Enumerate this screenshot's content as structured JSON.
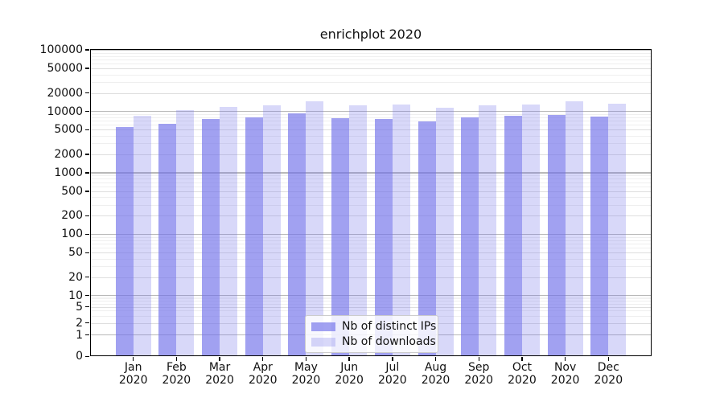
{
  "chart_data": {
    "type": "bar",
    "title": "enrichplot 2020",
    "categories": [
      "Jan",
      "Feb",
      "Mar",
      "Apr",
      "May",
      "Jun",
      "Jul",
      "Aug",
      "Sep",
      "Oct",
      "Nov",
      "Dec"
    ],
    "category_sub_label": "2020",
    "series": [
      {
        "name": "Nb of distinct IPs",
        "color": "#6e6ee9",
        "alpha": 0.65,
        "color_rendered": "#a1a1f1",
        "values": [
          5500,
          6200,
          7400,
          7900,
          9200,
          7700,
          7500,
          6800,
          7800,
          8300,
          8700,
          8100
        ]
      },
      {
        "name": "Nb of downloads",
        "color": "#6e6ee9",
        "alpha": 0.27,
        "color_rendered": "#d8d8f9",
        "values": [
          8400,
          10400,
          11800,
          12300,
          14500,
          12500,
          12800,
          11200,
          12400,
          12900,
          14500,
          13200
        ]
      }
    ],
    "yticks": [
      0,
      1,
      2,
      5,
      10,
      20,
      50,
      100,
      200,
      500,
      1000,
      2000,
      5000,
      10000,
      20000,
      50000,
      100000
    ],
    "ylim": [
      0,
      100000
    ],
    "yscale": "symlog",
    "grid": true,
    "legend": {
      "position": "lower-center"
    },
    "colors": {
      "grid_decade": "#b9b9b9",
      "grid_labeled": "#dedede",
      "grid_minor": "#efefef",
      "frame": "#000000",
      "text": "#1a1a1a",
      "background": "#ffffff"
    }
  }
}
